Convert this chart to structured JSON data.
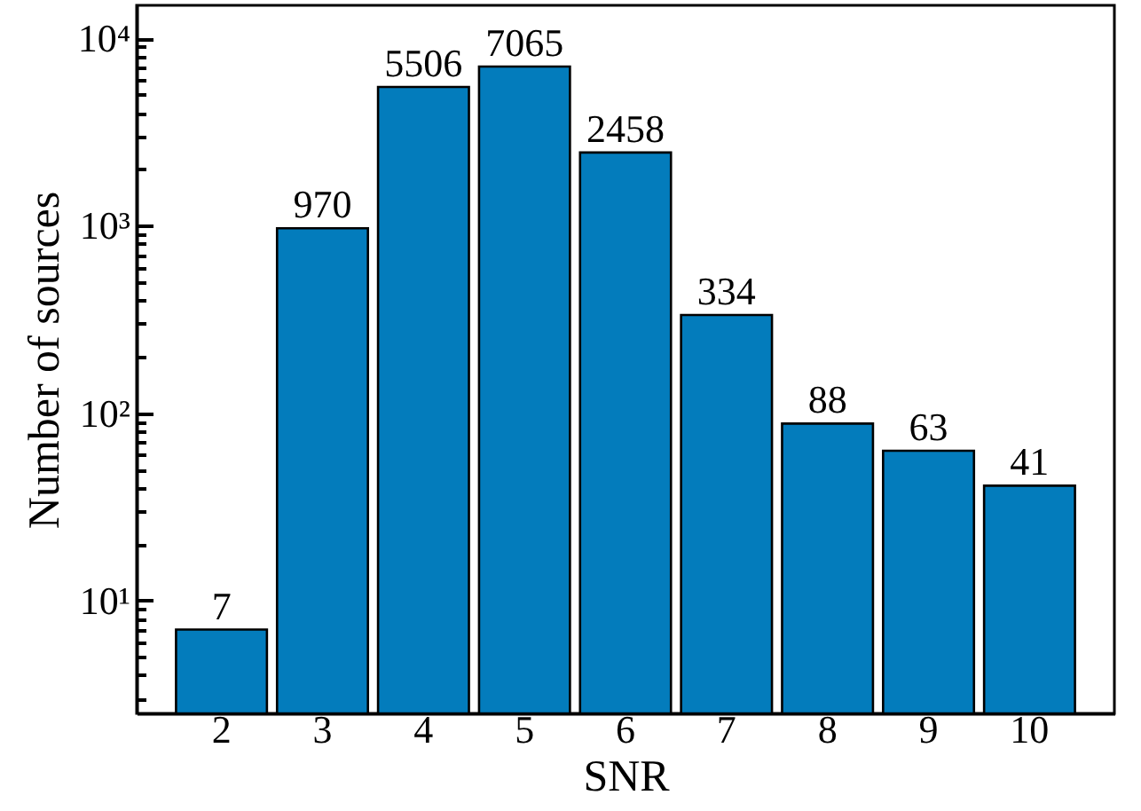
{
  "chart_data": {
    "type": "bar",
    "categories": [
      "2",
      "3",
      "4",
      "5",
      "6",
      "7",
      "8",
      "9",
      "10"
    ],
    "values": [
      7,
      970,
      5506,
      7065,
      2458,
      334,
      88,
      63,
      41
    ],
    "color": "#037cbc",
    "data_labels": true,
    "xlabel": "SNR",
    "ylabel": "Number of sources",
    "log": true,
    "ylim": [
      2.5,
      15000
    ],
    "yticks": [
      {
        "value": 3,
        "label": null
      },
      {
        "value": 4,
        "label": null
      },
      {
        "value": 5,
        "label": null
      },
      {
        "value": 6,
        "label": null
      },
      {
        "value": 7,
        "label": null
      },
      {
        "value": 8,
        "label": null
      },
      {
        "value": 9,
        "label": null
      },
      {
        "value": 10,
        "label": "10¹"
      },
      {
        "value": 20,
        "label": null
      },
      {
        "value": 30,
        "label": null
      },
      {
        "value": 40,
        "label": null
      },
      {
        "value": 50,
        "label": null
      },
      {
        "value": 60,
        "label": null
      },
      {
        "value": 70,
        "label": null
      },
      {
        "value": 80,
        "label": null
      },
      {
        "value": 90,
        "label": null
      },
      {
        "value": 100,
        "label": "10²"
      },
      {
        "value": 200,
        "label": null
      },
      {
        "value": 300,
        "label": null
      },
      {
        "value": 400,
        "label": null
      },
      {
        "value": 500,
        "label": null
      },
      {
        "value": 600,
        "label": null
      },
      {
        "value": 700,
        "label": null
      },
      {
        "value": 800,
        "label": null
      },
      {
        "value": 900,
        "label": null
      },
      {
        "value": 1000,
        "label": "10³"
      },
      {
        "value": 2000,
        "label": null
      },
      {
        "value": 3000,
        "label": null
      },
      {
        "value": 4000,
        "label": null
      },
      {
        "value": 5000,
        "label": null
      },
      {
        "value": 6000,
        "label": null
      },
      {
        "value": 7000,
        "label": null
      },
      {
        "value": 8000,
        "label": null
      },
      {
        "value": 9000,
        "label": null
      },
      {
        "value": 10000,
        "label": "10⁴"
      }
    ]
  }
}
